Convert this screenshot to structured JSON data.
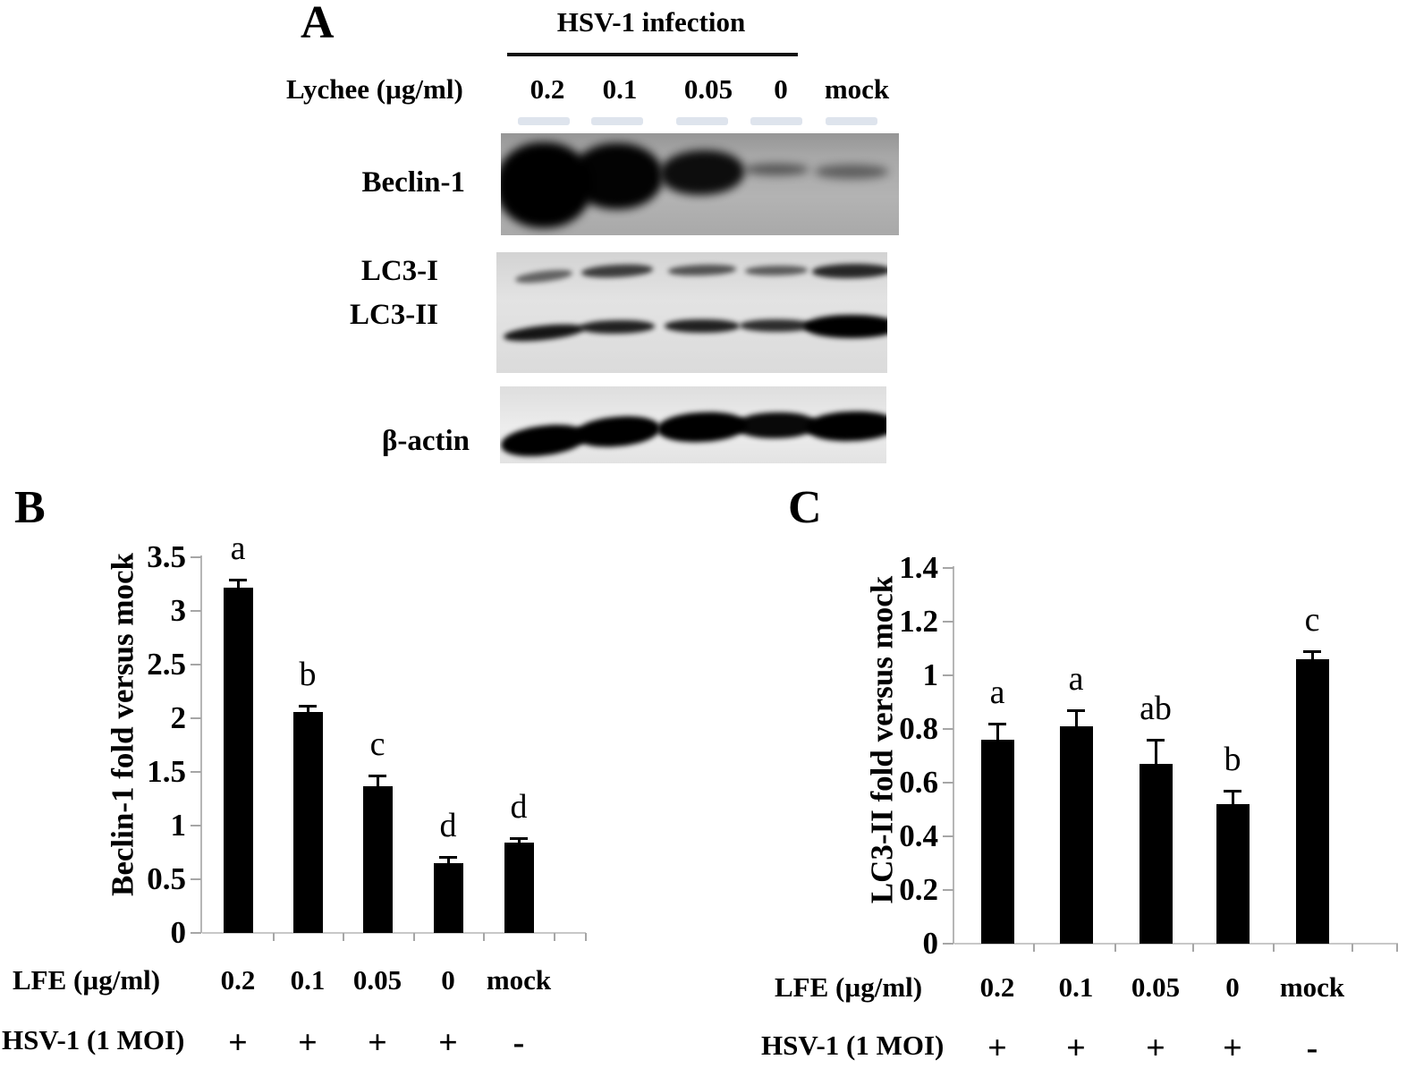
{
  "panels": {
    "a": "A",
    "b": "B",
    "c": "C"
  },
  "panel_a": {
    "header": "HSV-1 infection",
    "treatment_label": "Lychee (µg/ml)",
    "lanes": [
      "0.2",
      "0.1",
      "0.05",
      "0",
      "mock"
    ],
    "blots": [
      {
        "name": "Beclin-1",
        "intensities": [
          1,
          0.98,
          0.92,
          0.5,
          0.45
        ]
      },
      {
        "name": "LC3-I",
        "intensities": [
          0.55,
          0.72,
          0.62,
          0.58,
          0.82
        ]
      },
      {
        "name": "LC3-II",
        "intensities": [
          0.9,
          0.85,
          0.85,
          0.8,
          1
        ]
      },
      {
        "name": "β-actin",
        "intensities": [
          1,
          1,
          1,
          0.96,
          1
        ]
      }
    ]
  },
  "chart_data": [
    {
      "id": "B",
      "type": "bar",
      "title": "",
      "ylabel": "Beclin-1 fold versus mock",
      "xlabel": "",
      "ylim": [
        0,
        3.5
      ],
      "ytick_step": 0.5,
      "ytick_labels": [
        "3.5",
        "3",
        "2.5",
        "2",
        "1.5",
        "1",
        "0.5",
        "0"
      ],
      "categories": [
        "0.2",
        "0.1",
        "0.05",
        "0",
        "mock"
      ],
      "values": [
        3.22,
        2.06,
        1.37,
        0.65,
        0.84
      ],
      "errors": [
        0.07,
        0.06,
        0.1,
        0.06,
        0.04
      ],
      "sig_letters": [
        "a",
        "b",
        "c",
        "d",
        "d"
      ],
      "grid": false,
      "legend": "none",
      "bar_color": "#000000",
      "x_rows": [
        {
          "label": "LFE (µg/ml)",
          "values": [
            "0.2",
            "0.1",
            "0.05",
            "0",
            "mock"
          ]
        },
        {
          "label": "HSV-1 (1 MOI)",
          "values": [
            "+",
            "+",
            "+",
            "+",
            "-"
          ]
        }
      ]
    },
    {
      "id": "C",
      "type": "bar",
      "title": "",
      "ylabel": "LC3-II fold versus mock",
      "xlabel": "",
      "ylim": [
        0,
        1.4
      ],
      "ytick_step": 0.2,
      "ytick_labels": [
        "1.4",
        "1.2",
        "1",
        "0.8",
        "0.6",
        "0.4",
        "0.2",
        "0"
      ],
      "categories": [
        "0.2",
        "0.1",
        "0.05",
        "0",
        "mock"
      ],
      "values": [
        0.76,
        0.81,
        0.67,
        0.52,
        1.06
      ],
      "errors": [
        0.06,
        0.06,
        0.09,
        0.05,
        0.03
      ],
      "sig_letters": [
        "a",
        "a",
        "ab",
        "b",
        "c"
      ],
      "grid": false,
      "legend": "none",
      "bar_color": "#000000",
      "x_rows": [
        {
          "label": "LFE (µg/ml)",
          "values": [
            "0.2",
            "0.1",
            "0.05",
            "0",
            "mock"
          ]
        },
        {
          "label": "HSV-1 (1 MOI)",
          "values": [
            "+",
            "+",
            "+",
            "+",
            "-"
          ]
        }
      ]
    }
  ]
}
